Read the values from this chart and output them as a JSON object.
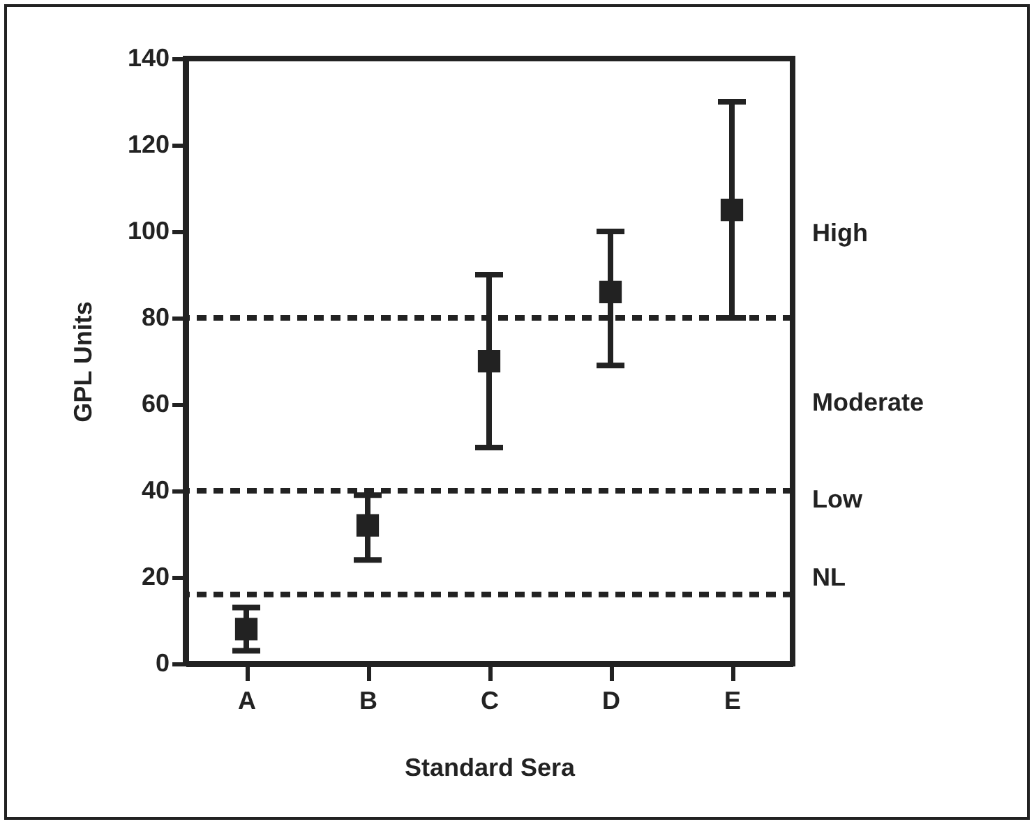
{
  "chart_data": {
    "type": "scatter",
    "xlabel": "Standard Sera",
    "ylabel": "GPL Units",
    "categories": [
      "A",
      "B",
      "C",
      "D",
      "E"
    ],
    "series": [
      {
        "color": "#222222",
        "values": [
          8,
          32,
          70,
          86,
          105
        ],
        "errors": [
          [
            3,
            13
          ],
          [
            24,
            39
          ],
          [
            50,
            90
          ],
          [
            69,
            100
          ],
          [
            80,
            130
          ]
        ]
      }
    ],
    "marker": "square",
    "ylim": [
      0,
      140
    ],
    "yticks": [
      0,
      20,
      40,
      60,
      80,
      100,
      120,
      140
    ],
    "grid": false,
    "ref_lines": [
      {
        "axis": "y",
        "value": 16,
        "line_style": "dashed"
      },
      {
        "axis": "y",
        "value": 40,
        "line_style": "dashed"
      },
      {
        "axis": "y",
        "value": 80,
        "line_style": "dashed"
      }
    ],
    "annotations": [
      "High",
      "Moderate",
      "Low",
      "NL"
    ]
  }
}
